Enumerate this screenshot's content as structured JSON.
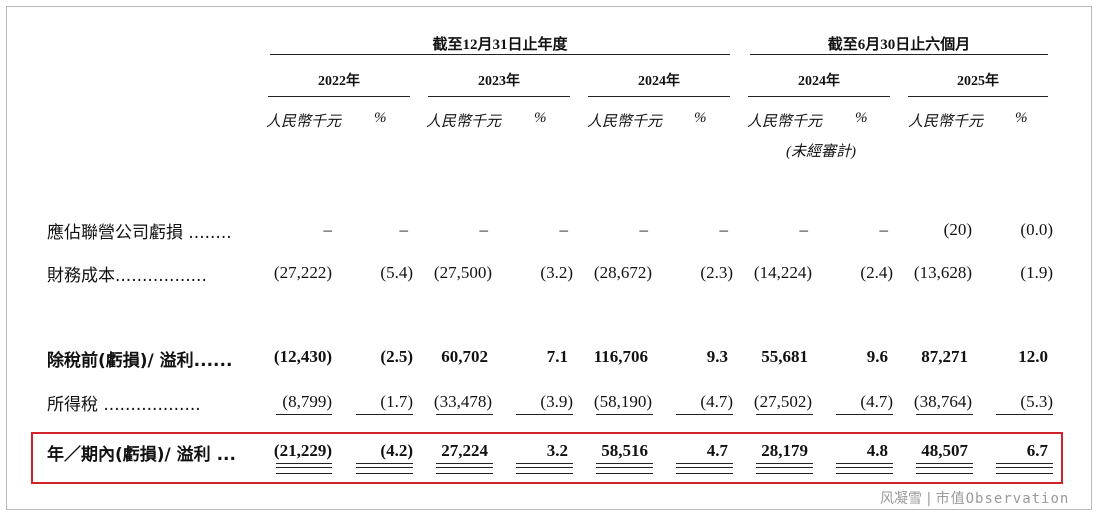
{
  "headers": {
    "fy_period": "截至12月31日止年度",
    "interim_period": "截至6月30日止六個月",
    "years": [
      "2022年",
      "2023年",
      "2024年",
      "2024年",
      "2025年"
    ],
    "unit_rmb": "人民幣千元",
    "unit_pct": "%",
    "unaudited": "(未經審計)"
  },
  "rows": [
    {
      "label": "應佔聯營公司虧損 ........",
      "values": [
        "–",
        "–",
        "–",
        "–",
        "–",
        "–",
        "–",
        "–",
        "(20)",
        "(0.0)"
      ]
    },
    {
      "label": "財務成本.................",
      "values": [
        "(27,222)",
        "(5.4)",
        "(27,500)",
        "(3.2)",
        "(28,672)",
        "(2.3)",
        "(14,224)",
        "(2.4)",
        "(13,628)",
        "(1.9)"
      ]
    },
    {
      "label": "除稅前(虧損)/ 溢利......",
      "values": [
        "(12,430)",
        "(2.5)",
        "60,702",
        "7.1",
        "116,706",
        "9.3",
        "55,681",
        "9.6",
        "87,271",
        "12.0"
      ]
    },
    {
      "label": "所得稅 ..................",
      "values": [
        "(8,799)",
        "(1.7)",
        "(33,478)",
        "(3.9)",
        "(58,190)",
        "(4.7)",
        "(27,502)",
        "(4.7)",
        "(38,764)",
        "(5.3)"
      ]
    },
    {
      "label": "年／期內(虧損)/ 溢利 ...",
      "values": [
        "(21,229)",
        "(4.2)",
        "27,224",
        "3.2",
        "58,516",
        "4.7",
        "28,179",
        "4.8",
        "48,507",
        "6.7"
      ]
    }
  ],
  "watermark": {
    "prefix": "风凝雪",
    "separator": "|",
    "suffix": "市值Observation"
  },
  "colors": {
    "highlight_border": "#d2232a",
    "rule": "#222222",
    "watermark": "#9a9a9a"
  }
}
